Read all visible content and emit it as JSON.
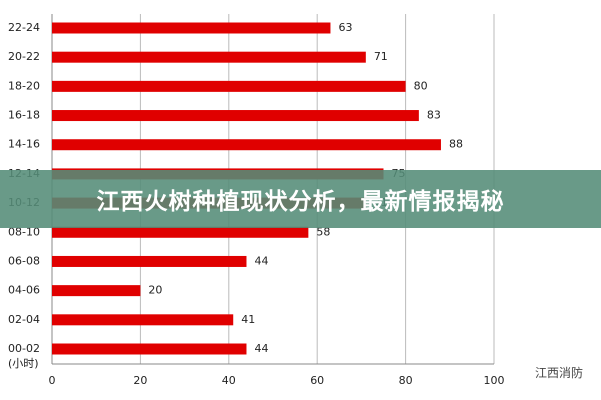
{
  "chart_data": {
    "type": "bar",
    "orientation": "horizontal",
    "categories": [
      "22-24",
      "20-22",
      "18-20",
      "16-18",
      "14-16",
      "12-14",
      "10-12",
      "08-10",
      "06-08",
      "04-06",
      "02-04",
      "00-02"
    ],
    "values": [
      63,
      71,
      80,
      83,
      88,
      75,
      71,
      58,
      44,
      20,
      41,
      44
    ],
    "color": "#e00000",
    "ylabel": "(小时)",
    "xlim": [
      0,
      100
    ],
    "xticks": [
      0,
      20,
      40,
      60,
      80,
      100
    ],
    "grid": true
  },
  "banner": {
    "title": "江西火树种植现状分析，最新情报揭秘"
  },
  "watermark": {
    "text": "江西消防"
  }
}
